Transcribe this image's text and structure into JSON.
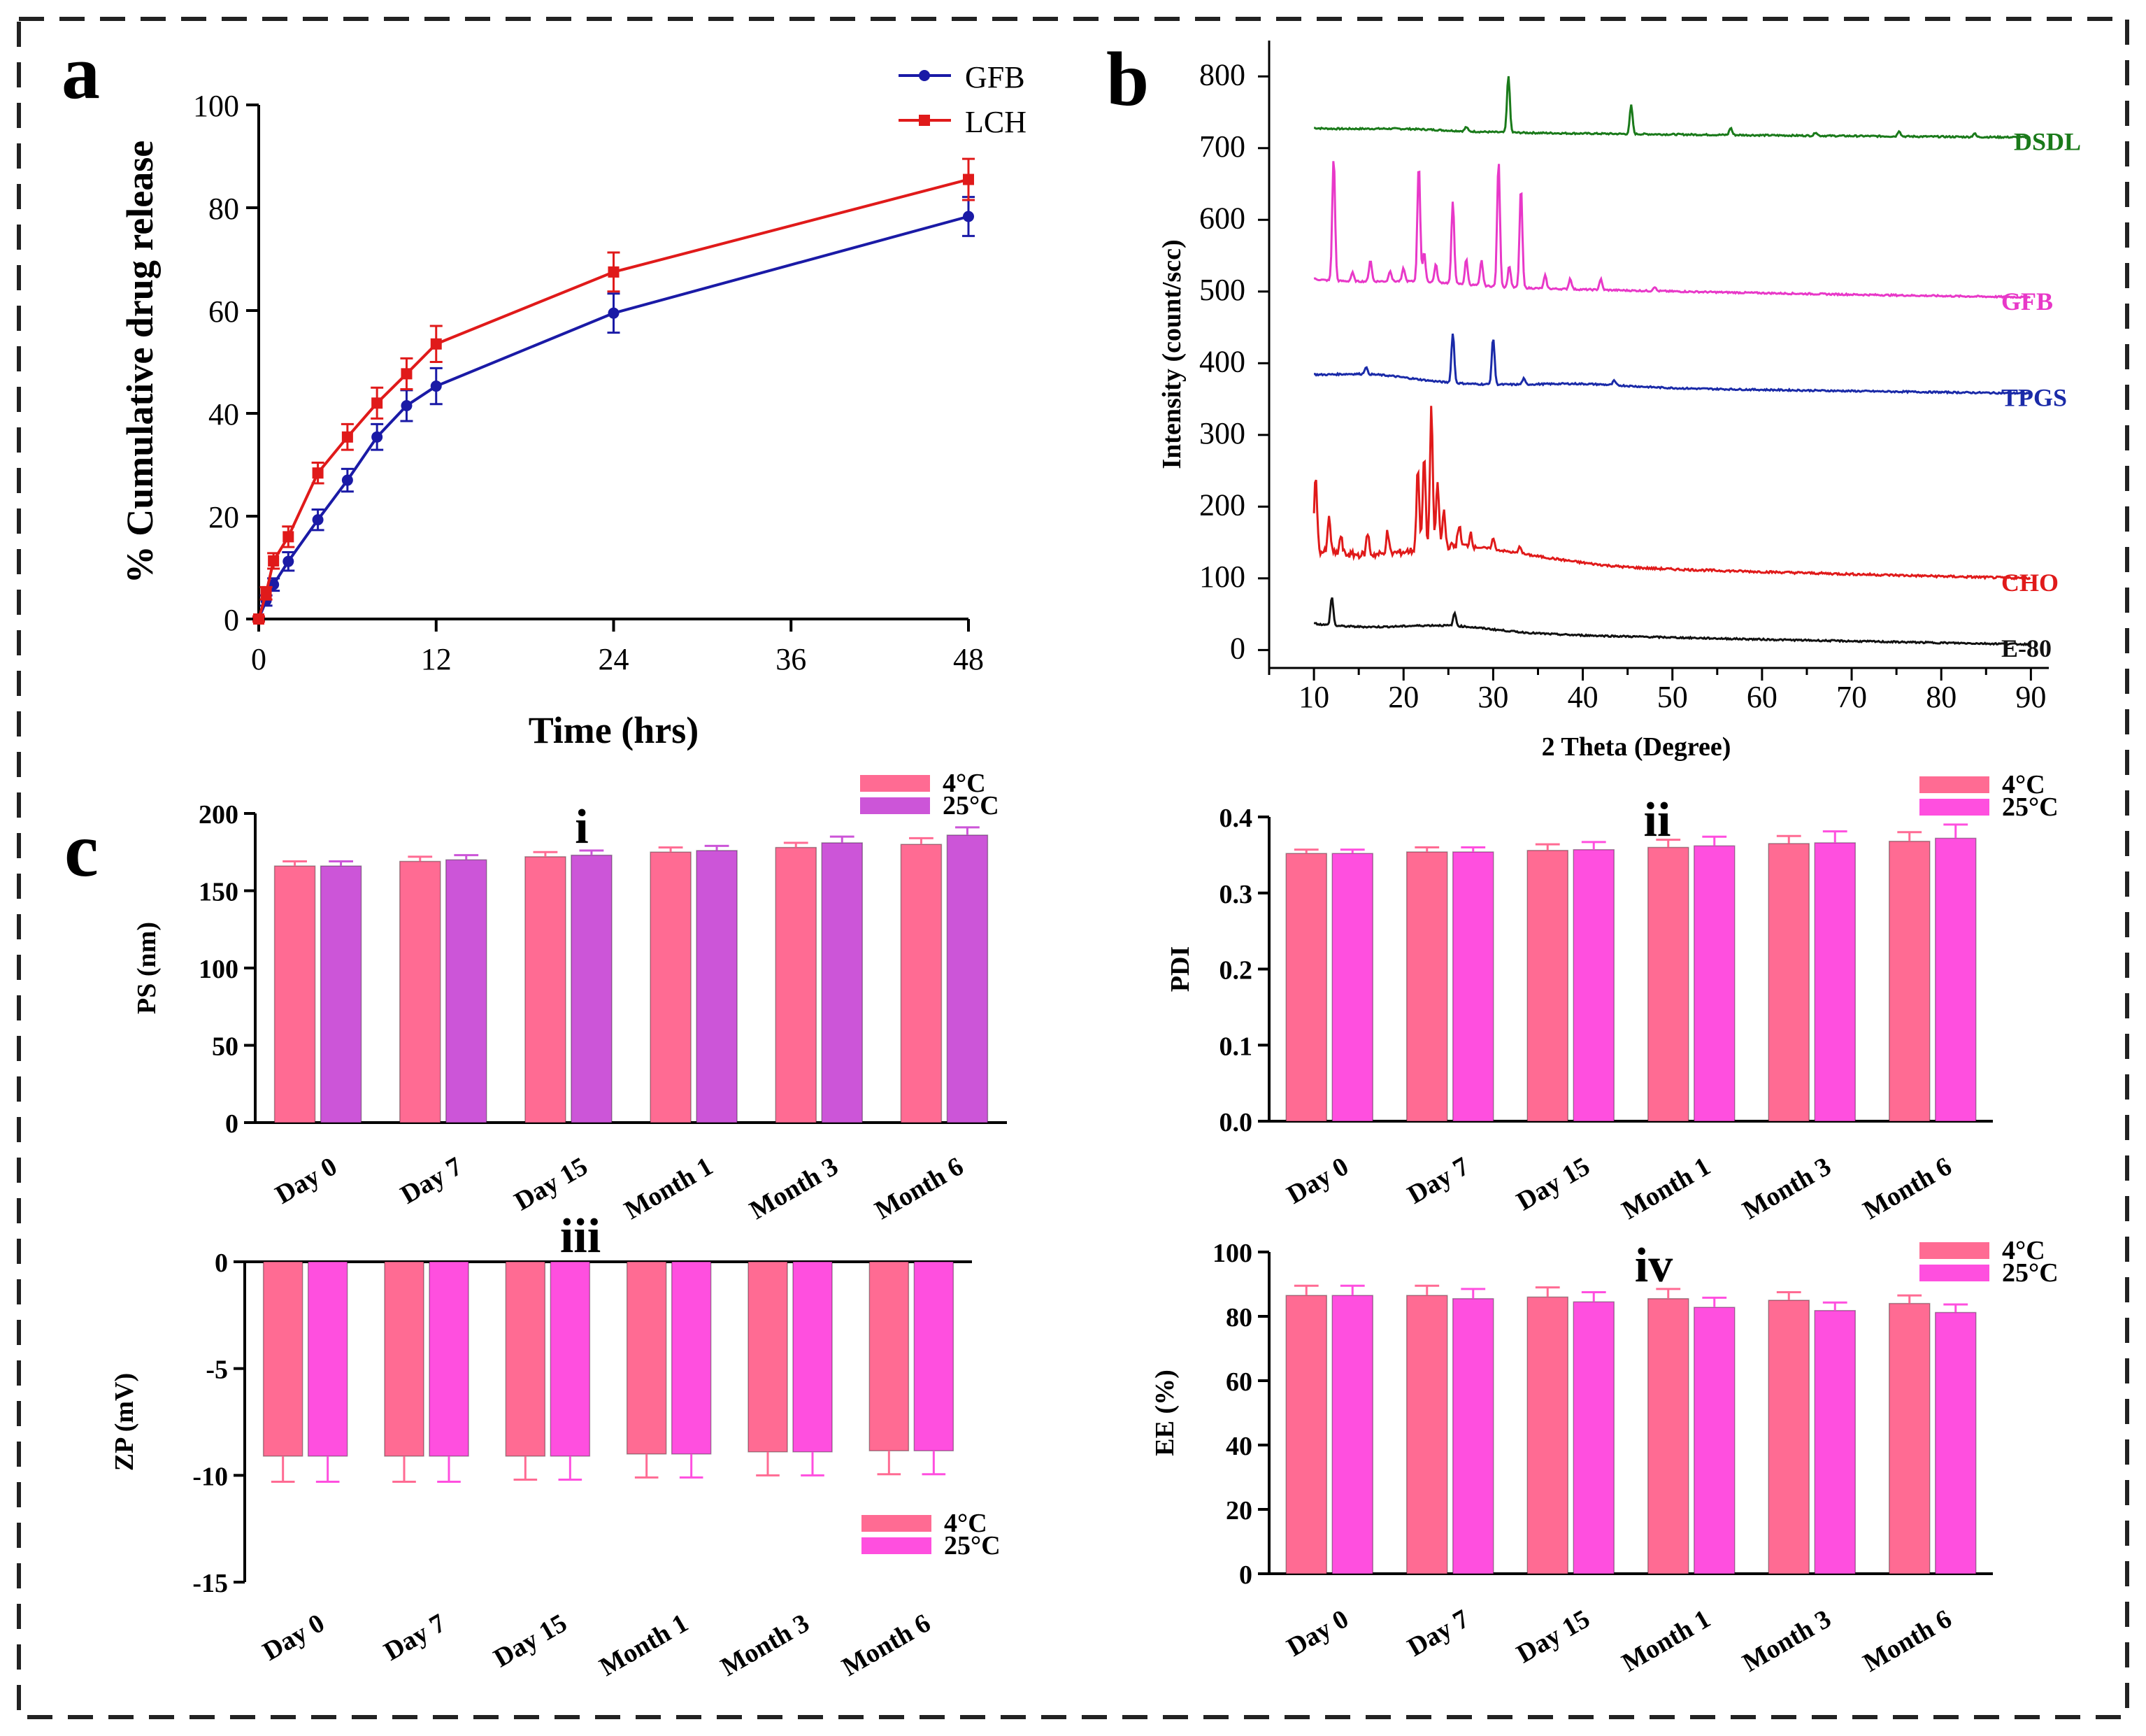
{
  "panel_labels": {
    "a": "a",
    "b": "b",
    "c": "c"
  },
  "colors": {
    "gfb_line": "#1a1aa6",
    "lch_line": "#e01a1a",
    "dsdl": "#1a7a1a",
    "gfb_xrd": "#e838c8",
    "tpgs": "#1a2aa8",
    "cho": "#e01a1a",
    "e80": "#111111",
    "bar_4c": "#ff6b93",
    "bar_25c_i": "#cc55d8",
    "bar_25c": "#ff4fdf"
  },
  "chart_data": [
    {
      "id": "a",
      "type": "line",
      "xlabel": "Time (hrs)",
      "ylabel": "% Cumulative drug release",
      "xlim": [
        0,
        48
      ],
      "ylim": [
        0,
        100
      ],
      "xticks": [
        "0",
        "12",
        "24",
        "36",
        "48"
      ],
      "yticks": [
        "0",
        "20",
        "40",
        "60",
        "80",
        "100"
      ],
      "x": [
        0,
        0.5,
        1,
        2,
        4,
        6,
        8,
        10,
        12,
        24,
        48
      ],
      "series": [
        {
          "name": "GFB",
          "values": [
            0,
            3.6,
            6.7,
            11.2,
            19.3,
            27,
            35.4,
            41.5,
            45.3,
            59.5,
            78.3
          ],
          "errors": [
            0.5,
            1,
            1.2,
            1.8,
            2,
            2.2,
            2.5,
            3,
            3.5,
            3.8,
            3.8
          ]
        },
        {
          "name": "LCH",
          "values": [
            0,
            5,
            11.3,
            16,
            28.4,
            35.4,
            42,
            47.7,
            53.5,
            67.5,
            85.5
          ],
          "errors": [
            0.5,
            1.2,
            1.5,
            2,
            2,
            2.5,
            3,
            3,
            3.5,
            3.8,
            4
          ]
        }
      ],
      "legend": [
        "GFB",
        "LCH"
      ]
    },
    {
      "id": "b",
      "type": "line",
      "xlabel": "2 Theta (Degree)",
      "ylabel": "Intensity (count/scc)",
      "xlim": [
        5,
        92
      ],
      "ylim": [
        -25,
        850
      ],
      "xticks": [
        "10",
        "20",
        "30",
        "40",
        "50",
        "60",
        "70",
        "80",
        "90"
      ],
      "yticks": [
        "0",
        "100",
        "200",
        "300",
        "400",
        "500",
        "600",
        "700",
        "800"
      ],
      "series": [
        {
          "name": "DSDL",
          "baseline_start": 728,
          "baseline_end": 715,
          "peaks": [
            [
              31.7,
              80
            ],
            [
              45.4,
              40
            ],
            [
              56.5,
              10
            ],
            [
              66,
              5
            ],
            [
              75.3,
              8
            ],
            [
              83.7,
              5
            ],
            [
              27,
              6
            ]
          ]
        },
        {
          "name": "GFB",
          "baseline_start": 518,
          "baseline_end": 492,
          "peaks": [
            [
              12.2,
              173
            ],
            [
              14.3,
              12
            ],
            [
              16.3,
              30
            ],
            [
              18.5,
              15
            ],
            [
              20,
              18
            ],
            [
              21.7,
              165
            ],
            [
              22.3,
              40
            ],
            [
              23.6,
              25
            ],
            [
              25.5,
              115
            ],
            [
              27,
              35
            ],
            [
              28.7,
              35
            ],
            [
              30.6,
              176
            ],
            [
              31.8,
              30
            ],
            [
              33.1,
              140
            ],
            [
              35.8,
              18
            ],
            [
              38.6,
              15
            ],
            [
              42,
              15
            ],
            [
              48,
              6
            ]
          ]
        },
        {
          "name": "TPGS",
          "baseline_start": 380,
          "baseline_end": 358,
          "peaks": [
            [
              25.5,
              70
            ],
            [
              30,
              65
            ],
            [
              15.8,
              10
            ],
            [
              33.4,
              8
            ],
            [
              43.5,
              6
            ]
          ]
        },
        {
          "name": "CHO",
          "baseline_start": 140,
          "baseline_end": 100,
          "peaks": [
            [
              10.2,
              105
            ],
            [
              11.7,
              50
            ],
            [
              13,
              25
            ],
            [
              16,
              30
            ],
            [
              18.2,
              30
            ],
            [
              21.6,
              115
            ],
            [
              22.3,
              130
            ],
            [
              23.1,
              195
            ],
            [
              23.8,
              90
            ],
            [
              24.5,
              50
            ],
            [
              26.2,
              30
            ],
            [
              27.5,
              20
            ],
            [
              30,
              15
            ],
            [
              33,
              10
            ]
          ]
        },
        {
          "name": "E-80",
          "baseline_start": 38,
          "baseline_end": 8,
          "peaks": [
            [
              12,
              40
            ],
            [
              25.7,
              18
            ]
          ]
        }
      ]
    },
    {
      "id": "c-i",
      "type": "bar",
      "panel_label": "i",
      "ylabel": "PS (nm)",
      "ylim": [
        0,
        200
      ],
      "yticks": [
        "0",
        "50",
        "100",
        "150",
        "200"
      ],
      "categories": [
        "Day 0",
        "Day 7",
        "Day 15",
        "Month 1",
        "Month 3",
        "Month 6"
      ],
      "series": [
        {
          "name": "4°C",
          "values": [
            166,
            169,
            172,
            175,
            178,
            180
          ],
          "errors": [
            3,
            3,
            3,
            3,
            3,
            4
          ]
        },
        {
          "name": "25°C",
          "values": [
            166,
            170,
            173,
            176,
            181,
            186
          ],
          "errors": [
            3,
            3,
            3,
            3,
            4,
            5
          ]
        }
      ],
      "legend": [
        "4°C",
        "25°C"
      ]
    },
    {
      "id": "c-ii",
      "type": "bar",
      "panel_label": "ii",
      "ylabel": "PDI",
      "ylim": [
        0,
        0.4
      ],
      "yticks": [
        "0.0",
        "0.1",
        "0.2",
        "0.3",
        "0.4"
      ],
      "categories": [
        "Day 0",
        "Day 7",
        "Day 15",
        "Month 1",
        "Month 3",
        "Month 6"
      ],
      "series": [
        {
          "name": "4°C",
          "values": [
            0.352,
            0.354,
            0.356,
            0.36,
            0.365,
            0.368
          ],
          "errors": [
            0.005,
            0.006,
            0.008,
            0.01,
            0.01,
            0.012
          ]
        },
        {
          "name": "25°C",
          "values": [
            0.352,
            0.354,
            0.357,
            0.362,
            0.366,
            0.372
          ],
          "errors": [
            0.005,
            0.006,
            0.01,
            0.012,
            0.015,
            0.018
          ]
        }
      ],
      "legend": [
        "4°C",
        "25°C"
      ]
    },
    {
      "id": "c-iii",
      "type": "bar",
      "panel_label": "iii",
      "ylabel": "ZP (mV)",
      "ylim": [
        -15,
        0
      ],
      "yticks": [
        "0",
        "-5",
        "-10",
        "-15"
      ],
      "categories": [
        "Day 0",
        "Day 7",
        "Day 15",
        "Month 1",
        "Month 3",
        "Month 6"
      ],
      "series": [
        {
          "name": "4°C",
          "values": [
            -9.1,
            -9.1,
            -9.1,
            -9.0,
            -8.9,
            -8.85
          ],
          "errors": [
            1.2,
            1.2,
            1.1,
            1.1,
            1.1,
            1.1
          ]
        },
        {
          "name": "25°C",
          "values": [
            -9.1,
            -9.1,
            -9.1,
            -9.0,
            -8.9,
            -8.85
          ],
          "errors": [
            1.2,
            1.2,
            1.1,
            1.1,
            1.1,
            1.1
          ]
        }
      ],
      "legend": [
        "4°C",
        "25°C"
      ]
    },
    {
      "id": "c-iv",
      "type": "bar",
      "panel_label": "iv",
      "ylabel": "EE (%)",
      "ylim": [
        0,
        100
      ],
      "yticks": [
        "0",
        "20",
        "40",
        "60",
        "80",
        "100"
      ],
      "categories": [
        "Day 0",
        "Day 7",
        "Day 15",
        "Month 1",
        "Month 3",
        "Month 6"
      ],
      "series": [
        {
          "name": "4°C",
          "values": [
            86.5,
            86.5,
            86,
            85.5,
            85,
            84
          ],
          "errors": [
            3,
            3,
            3,
            3,
            2.5,
            2.5
          ]
        },
        {
          "name": "25°C",
          "values": [
            86.5,
            85.5,
            84.5,
            82.8,
            81.8,
            81.2
          ],
          "errors": [
            3,
            3,
            3,
            3,
            2.5,
            2.5
          ]
        }
      ],
      "legend": [
        "4°C",
        "25°C"
      ]
    }
  ]
}
